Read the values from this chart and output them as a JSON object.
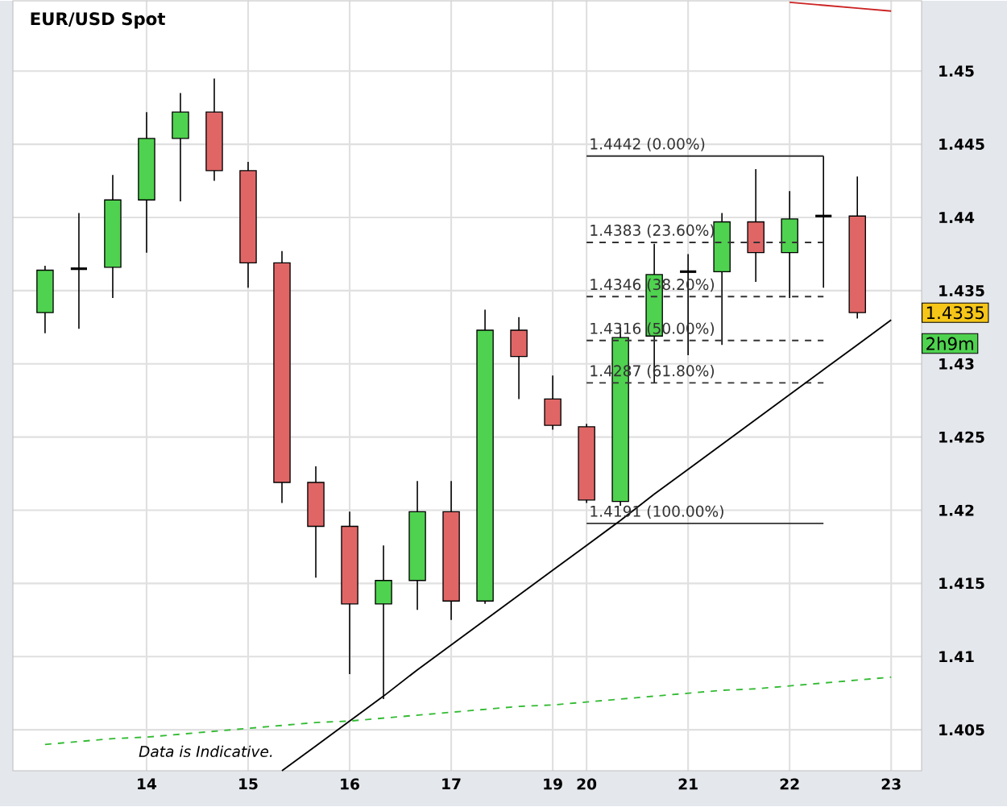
{
  "chart_data": {
    "type": "candlestick",
    "title": "EUR/USD Spot",
    "categories": [
      null,
      null,
      null,
      "14",
      null,
      null,
      "15",
      null,
      null,
      "16",
      null,
      null,
      "17",
      null,
      null,
      "19",
      "20",
      null,
      null,
      "21",
      null,
      null,
      "22",
      null,
      null,
      "23"
    ],
    "ohlc": [
      [
        1.4335,
        1.4367,
        1.4321,
        1.4364
      ],
      [
        1.4365,
        1.4403,
        1.4324,
        1.4365
      ],
      [
        1.4366,
        1.4429,
        1.4345,
        1.4412
      ],
      [
        1.4412,
        1.4472,
        1.4376,
        1.4454
      ],
      [
        1.4454,
        1.4485,
        1.4411,
        1.4472
      ],
      [
        1.4472,
        1.4495,
        1.4425,
        1.4432
      ],
      [
        1.4432,
        1.4438,
        1.4352,
        1.4369
      ],
      [
        1.4369,
        1.4377,
        1.4205,
        1.4219
      ],
      [
        1.4219,
        1.423,
        1.4154,
        1.4189
      ],
      [
        1.4189,
        1.4199,
        1.4088,
        1.4136
      ],
      [
        1.4136,
        1.4176,
        1.4071,
        1.4152
      ],
      [
        1.4152,
        1.422,
        1.4132,
        1.4199
      ],
      [
        1.4199,
        1.422,
        1.4125,
        1.4138
      ],
      [
        1.4138,
        1.4337,
        1.4136,
        1.4323
      ],
      [
        1.4323,
        1.4332,
        1.4276,
        1.4305
      ],
      [
        1.4276,
        1.4292,
        1.4255,
        1.4258
      ],
      [
        1.4257,
        1.4259,
        1.4205,
        1.4207
      ],
      [
        1.4206,
        1.4325,
        1.4203,
        1.4318
      ],
      [
        1.4319,
        1.4382,
        1.4287,
        1.4361
      ],
      [
        1.4363,
        1.4375,
        1.4306,
        1.4363
      ],
      [
        1.4363,
        1.4403,
        1.4313,
        1.4397
      ],
      [
        1.4397,
        1.4433,
        1.4356,
        1.4376
      ],
      [
        1.4376,
        1.4418,
        1.4345,
        1.4399
      ],
      [
        1.4401,
        1.4442,
        1.4352,
        1.4401
      ],
      [
        1.4401,
        1.4428,
        1.4331,
        1.4335
      ],
      null
    ],
    "colors": [
      "#4fd24f",
      "#000000",
      "#4fd24f",
      "#4fd24f",
      "#4fd24f",
      "#e06666",
      "#e06666",
      "#e06666",
      "#e06666",
      "#e06666",
      "#4fd24f",
      "#4fd24f",
      "#e06666",
      "#4fd24f",
      "#e06666",
      "#e06666",
      "#e06666",
      "#4fd24f",
      "#4fd24f",
      "#000000",
      "#4fd24f",
      "#e06666",
      "#4fd24f",
      "#000000",
      "#e06666",
      null
    ],
    "ylim": [
      1.4022,
      1.4548
    ],
    "yticks": [
      1.405,
      1.41,
      1.415,
      1.42,
      1.425,
      1.43,
      1.435,
      1.44,
      1.445,
      1.45
    ],
    "grid": true,
    "series": [
      {
        "type": "line",
        "color": "#333333",
        "line_style": "solid",
        "values": [
          null,
          null,
          null,
          null,
          null,
          null,
          null,
          null,
          null,
          null,
          null,
          null,
          null,
          null,
          null,
          null,
          1.4442,
          1.4442,
          1.4442,
          1.4442,
          1.4442,
          1.4442,
          1.4442,
          1.4442,
          null,
          null
        ]
      },
      {
        "type": "line",
        "color": "#333333",
        "line_style": "dashed",
        "values": [
          null,
          null,
          null,
          null,
          null,
          null,
          null,
          null,
          null,
          null,
          null,
          null,
          null,
          null,
          null,
          null,
          1.4383,
          1.4383,
          1.4383,
          1.4383,
          1.4383,
          1.4383,
          1.4383,
          1.4383,
          null,
          null
        ]
      },
      {
        "type": "line",
        "color": "#333333",
        "line_style": "dashed",
        "values": [
          null,
          null,
          null,
          null,
          null,
          null,
          null,
          null,
          null,
          null,
          null,
          null,
          null,
          null,
          null,
          null,
          1.4346,
          1.4346,
          1.4346,
          1.4346,
          1.4346,
          1.4346,
          1.4346,
          1.4346,
          null,
          null
        ]
      },
      {
        "type": "line",
        "color": "#333333",
        "line_style": "dashed",
        "values": [
          null,
          null,
          null,
          null,
          null,
          null,
          null,
          null,
          null,
          null,
          null,
          null,
          null,
          null,
          null,
          null,
          1.4316,
          1.4316,
          1.4316,
          1.4316,
          1.4316,
          1.4316,
          1.4316,
          1.4316,
          null,
          null
        ]
      },
      {
        "type": "line",
        "color": "#333333",
        "line_style": "dashed",
        "values": [
          null,
          null,
          null,
          null,
          null,
          null,
          null,
          null,
          null,
          null,
          null,
          null,
          null,
          null,
          null,
          null,
          1.4287,
          1.4287,
          1.4287,
          1.4287,
          1.4287,
          1.4287,
          1.4287,
          1.4287,
          null,
          null
        ]
      },
      {
        "type": "line",
        "color": "#333333",
        "line_style": "solid",
        "values": [
          null,
          null,
          null,
          null,
          null,
          null,
          null,
          null,
          null,
          null,
          null,
          null,
          null,
          null,
          null,
          null,
          1.4191,
          1.4191,
          1.4191,
          1.4191,
          1.4191,
          1.4191,
          1.4191,
          1.4191,
          null,
          null
        ]
      },
      {
        "type": "line",
        "color": "#000000",
        "line_style": "solid",
        "values": [
          null,
          null,
          null,
          null,
          null,
          null,
          null,
          1.4022,
          1.4039,
          1.4056,
          1.4073,
          1.4091,
          1.4108,
          1.4125,
          1.4142,
          1.4159,
          1.4176,
          1.4193,
          1.4211,
          1.4228,
          1.4245,
          1.4262,
          1.4279,
          1.4296,
          1.4313,
          1.433
        ]
      },
      {
        "type": "line",
        "color": "#33bb33",
        "line_style": "dashed",
        "values": [
          1.404,
          1.4042,
          1.4044,
          1.4045,
          1.4047,
          1.4049,
          1.4051,
          1.4053,
          1.4055,
          1.4056,
          1.4058,
          1.406,
          1.4062,
          1.4064,
          1.4066,
          1.4067,
          1.4069,
          1.4071,
          1.4073,
          1.4075,
          1.4077,
          1.4078,
          1.408,
          1.4082,
          1.4084,
          1.4086
        ]
      },
      {
        "type": "line",
        "color": "#cc2222",
        "line_style": "solid",
        "values": [
          null,
          null,
          null,
          null,
          null,
          null,
          null,
          null,
          null,
          null,
          null,
          null,
          null,
          null,
          null,
          null,
          null,
          null,
          null,
          null,
          null,
          null,
          1.4547,
          1.4545,
          1.4543,
          1.4541
        ]
      }
    ],
    "annotations": [
      "1.4442 (0.00%)",
      "1.4383 (23.60%)",
      "1.4346 (38.20%)",
      "1.4316 (50.00%)",
      "1.4287 (61.80%)",
      "1.4191 (100.00%)",
      "1.4335",
      "2h9m",
      "Data is Indicative."
    ]
  }
}
